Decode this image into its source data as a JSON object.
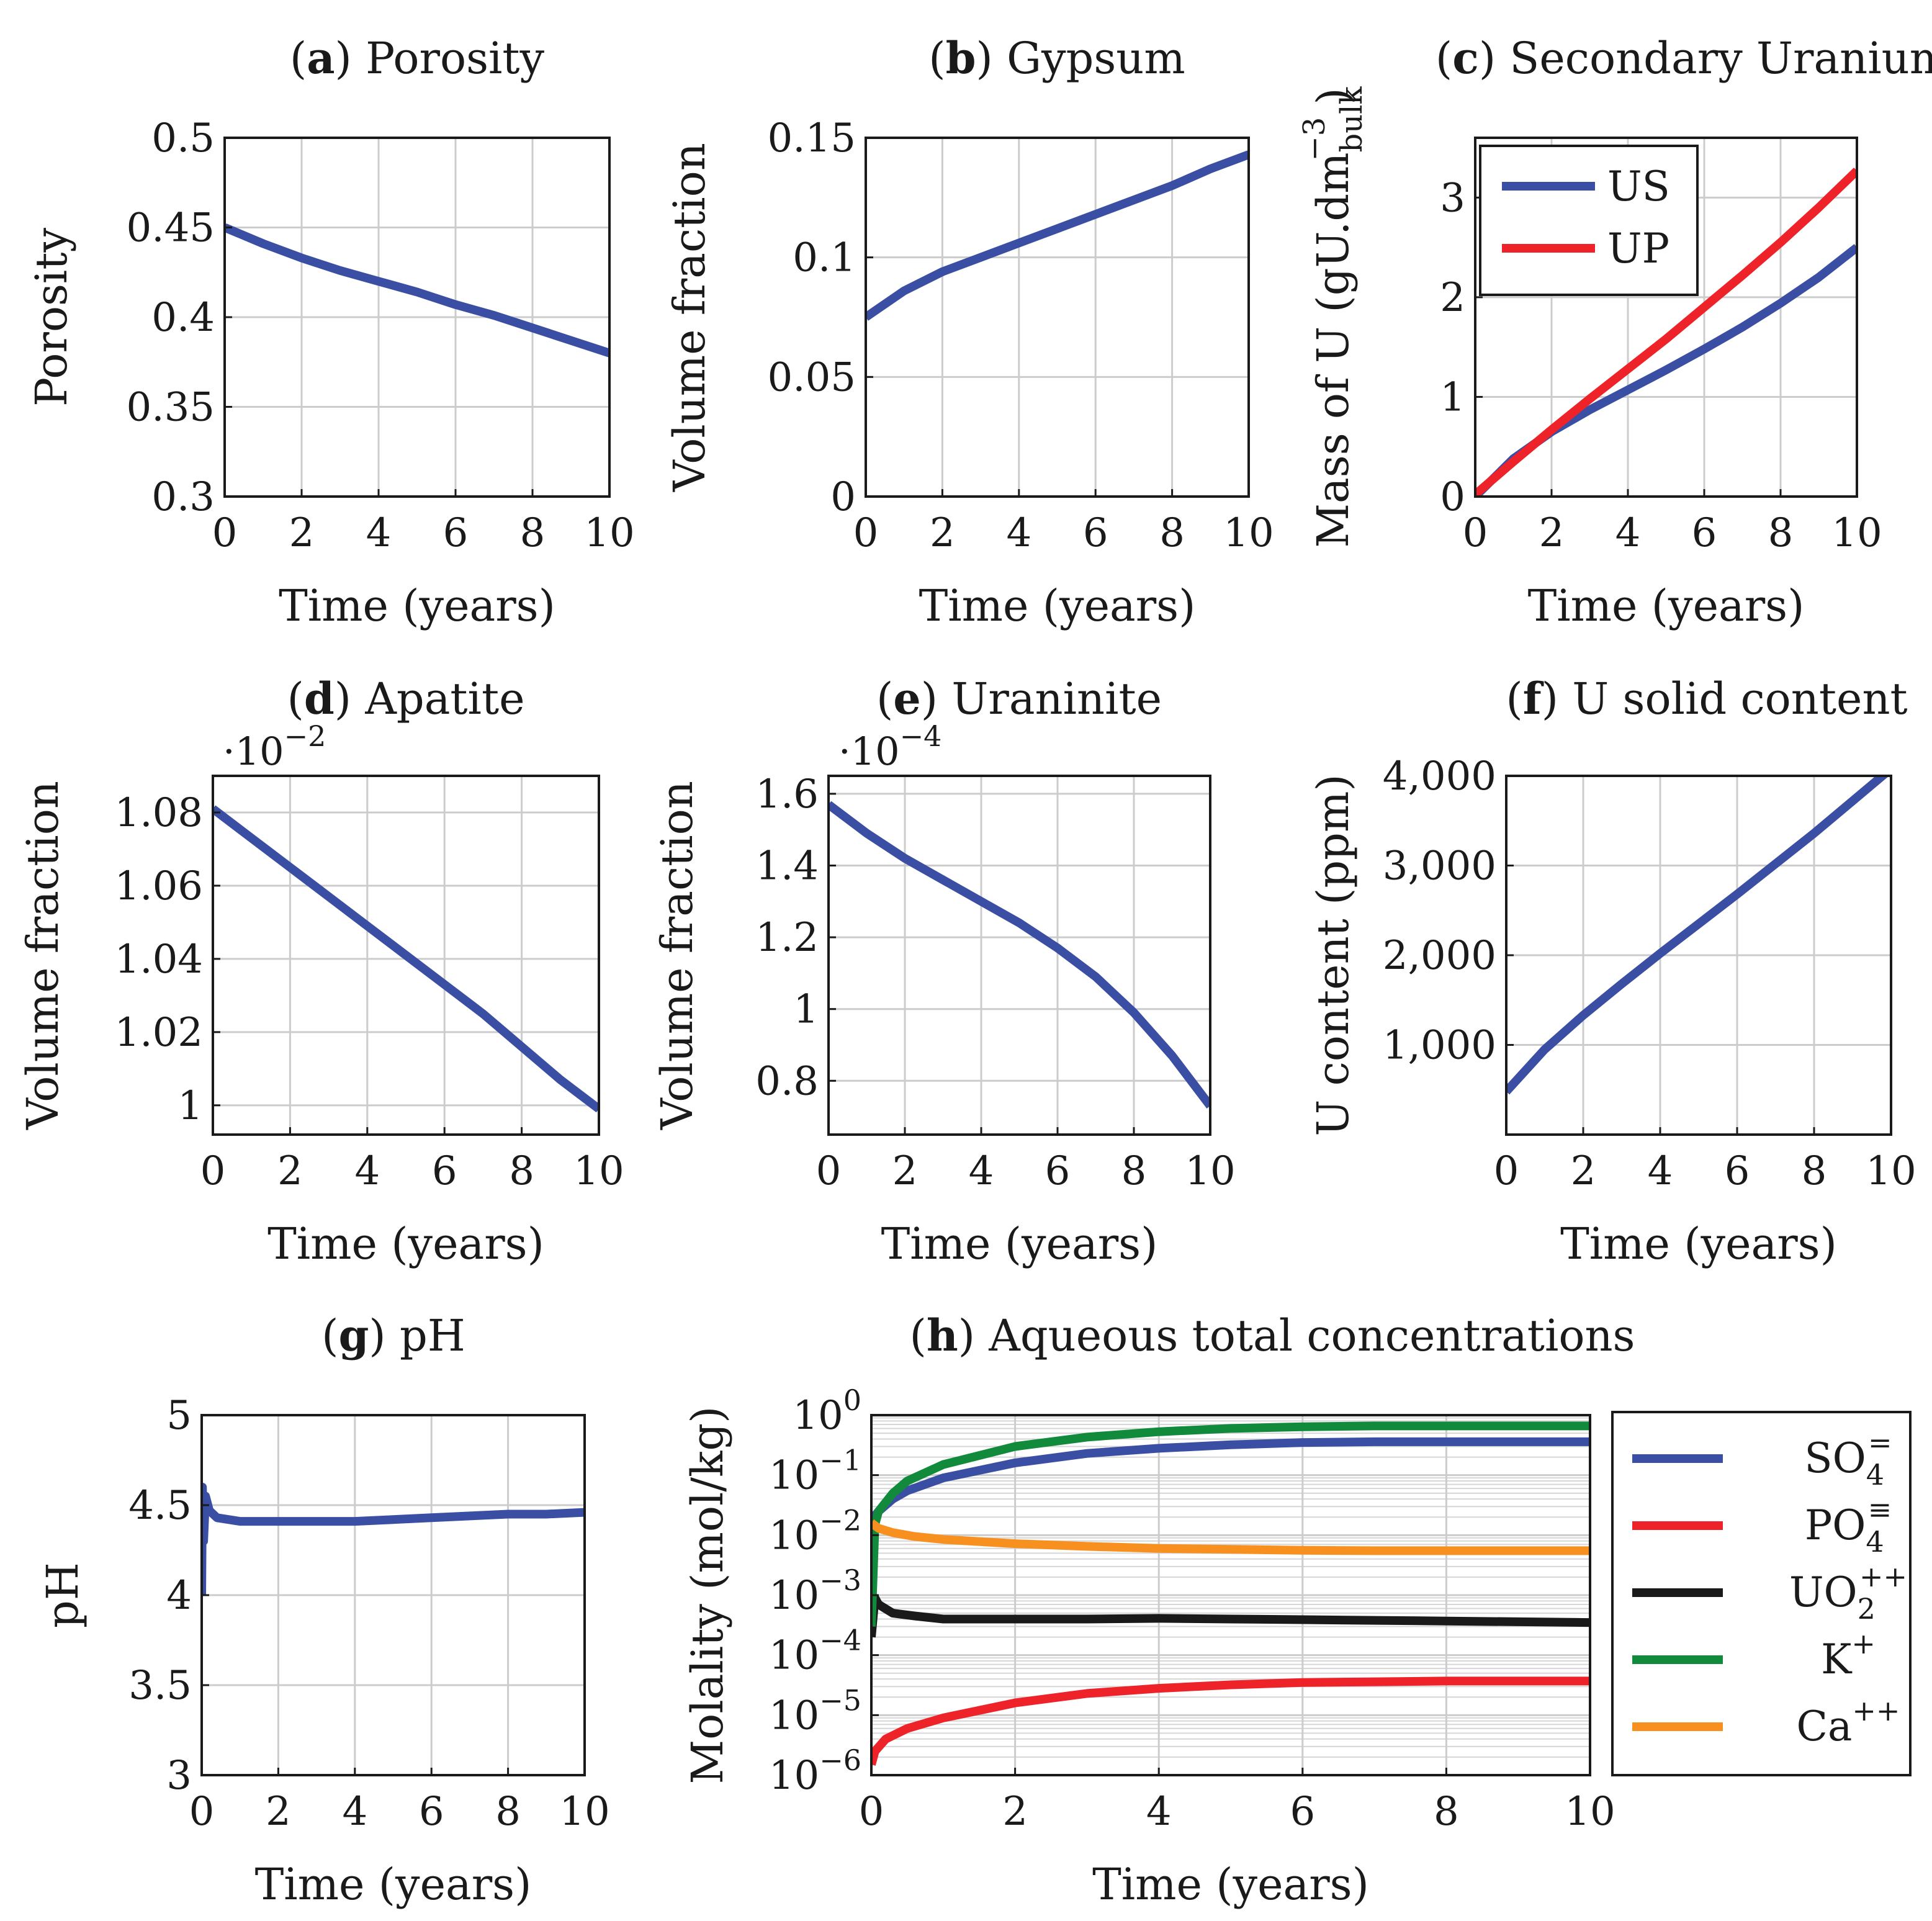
{
  "figure_title": "",
  "colors": {
    "blue": "#3a4fa3",
    "red": "#ee2229",
    "black": "#1a1a1a",
    "green": "#128a3c",
    "orange": "#f7901e"
  },
  "chart_data": [
    {
      "id": "a",
      "type": "line",
      "title_letter": "a",
      "title": "Porosity",
      "xlabel": "Time (years)",
      "ylabel": "Porosity",
      "xlim": [
        0,
        10
      ],
      "ylim": [
        0.3,
        0.5
      ],
      "xticks": [
        0,
        2,
        4,
        6,
        8,
        10
      ],
      "xtick_labels": [
        "0",
        "2",
        "4",
        "6",
        "8",
        "10"
      ],
      "yticks": [
        0.3,
        0.35,
        0.4,
        0.45,
        0.5
      ],
      "ytick_labels": [
        "0.3",
        "0.35",
        "0.4",
        "0.45",
        "0.5"
      ],
      "series": [
        {
          "name": "Porosity",
          "color": "blue",
          "x": [
            0,
            1,
            2,
            3,
            4,
            5,
            6,
            7,
            8,
            9,
            10
          ],
          "y": [
            0.45,
            0.441,
            0.433,
            0.426,
            0.42,
            0.414,
            0.407,
            0.401,
            0.394,
            0.387,
            0.38
          ]
        }
      ]
    },
    {
      "id": "b",
      "type": "line",
      "title_letter": "b",
      "title": "Gypsum",
      "xlabel": "Time (years)",
      "ylabel": "Volume fraction",
      "xlim": [
        0,
        10
      ],
      "ylim": [
        0,
        0.15
      ],
      "xticks": [
        0,
        2,
        4,
        6,
        8,
        10
      ],
      "xtick_labels": [
        "0",
        "2",
        "4",
        "6",
        "8",
        "10"
      ],
      "yticks": [
        0,
        0.05,
        0.1,
        0.15
      ],
      "ytick_labels": [
        "0",
        "0.05",
        "0.1",
        "0.15"
      ],
      "series": [
        {
          "name": "Gypsum",
          "color": "blue",
          "x": [
            0,
            1,
            2,
            3,
            4,
            5,
            6,
            7,
            8,
            9,
            10
          ],
          "y": [
            0.075,
            0.086,
            0.094,
            0.1,
            0.106,
            0.112,
            0.118,
            0.124,
            0.13,
            0.137,
            0.143
          ]
        }
      ]
    },
    {
      "id": "c",
      "type": "line",
      "title_letter": "c",
      "title": "Secondary Uranium",
      "xlabel": "Time (years)",
      "ylabel": "Mass of U (gU.dm",
      "ylabel_sub": "bulk",
      "ylabel_sup": "−3",
      "ylabel_end": ")",
      "xlim": [
        0,
        10
      ],
      "ylim": [
        0,
        3.6
      ],
      "xticks": [
        0,
        2,
        4,
        6,
        8,
        10
      ],
      "xtick_labels": [
        "0",
        "2",
        "4",
        "6",
        "8",
        "10"
      ],
      "yticks": [
        0,
        1,
        2,
        3
      ],
      "ytick_labels": [
        "0",
        "1",
        "2",
        "3"
      ],
      "legend_position": "top-left",
      "series": [
        {
          "name": "US",
          "color": "blue",
          "x": [
            0,
            1,
            2,
            3,
            4,
            5,
            6,
            7,
            8,
            9,
            10
          ],
          "y": [
            0,
            0.38,
            0.65,
            0.87,
            1.07,
            1.27,
            1.48,
            1.7,
            1.94,
            2.2,
            2.5
          ]
        },
        {
          "name": "UP",
          "color": "red",
          "x": [
            0,
            1,
            2,
            3,
            4,
            5,
            6,
            7,
            8,
            9,
            10
          ],
          "y": [
            0.02,
            0.35,
            0.67,
            0.98,
            1.28,
            1.58,
            1.9,
            2.22,
            2.55,
            2.9,
            3.27
          ]
        }
      ]
    },
    {
      "id": "d",
      "type": "line",
      "title_letter": "d",
      "title": "Apatite",
      "xlabel": "Time (years)",
      "ylabel": "Volume fraction",
      "scale_label": "·10",
      "scale_exp": "−2",
      "xlim": [
        0,
        10
      ],
      "ylim": [
        0.992,
        1.09
      ],
      "xticks": [
        0,
        2,
        4,
        6,
        8,
        10
      ],
      "xtick_labels": [
        "0",
        "2",
        "4",
        "6",
        "8",
        "10"
      ],
      "yticks": [
        1.0,
        1.02,
        1.04,
        1.06,
        1.08
      ],
      "ytick_labels": [
        "1",
        "1.02",
        "1.04",
        "1.06",
        "1.08"
      ],
      "series": [
        {
          "name": "Apatite",
          "color": "blue",
          "x": [
            0,
            1,
            2,
            3,
            4,
            5,
            6,
            7,
            8,
            9,
            10
          ],
          "y": [
            1.081,
            1.073,
            1.065,
            1.057,
            1.049,
            1.041,
            1.033,
            1.025,
            1.016,
            1.007,
            0.999
          ]
        }
      ]
    },
    {
      "id": "e",
      "type": "line",
      "title_letter": "e",
      "title": "Uraninite",
      "xlabel": "Time (years)",
      "ylabel": "Volume fraction",
      "scale_label": "·10",
      "scale_exp": "−4",
      "xlim": [
        0,
        10
      ],
      "ylim": [
        0.65,
        1.65
      ],
      "xticks": [
        0,
        2,
        4,
        6,
        8,
        10
      ],
      "xtick_labels": [
        "0",
        "2",
        "4",
        "6",
        "8",
        "10"
      ],
      "yticks": [
        0.8,
        1.0,
        1.2,
        1.4,
        1.6
      ],
      "ytick_labels": [
        "0.8",
        "1",
        "1.2",
        "1.4",
        "1.6"
      ],
      "series": [
        {
          "name": "Uraninite",
          "color": "blue",
          "x": [
            0,
            1,
            2,
            3,
            4,
            5,
            6,
            7,
            8,
            9,
            10
          ],
          "y": [
            1.57,
            1.49,
            1.42,
            1.36,
            1.3,
            1.24,
            1.17,
            1.09,
            0.99,
            0.87,
            0.73
          ]
        }
      ]
    },
    {
      "id": "f",
      "type": "line",
      "title_letter": "f",
      "title": "U solid content",
      "xlabel": "Time (years)",
      "ylabel": "U content (ppm)",
      "xlim": [
        0,
        10
      ],
      "ylim": [
        0,
        4000
      ],
      "xticks": [
        0,
        2,
        4,
        6,
        8,
        10
      ],
      "xtick_labels": [
        "0",
        "2",
        "4",
        "6",
        "8",
        "10"
      ],
      "yticks": [
        1000,
        2000,
        3000,
        4000
      ],
      "ytick_labels": [
        "1,000",
        "2,000",
        "3,000",
        "4,000"
      ],
      "series": [
        {
          "name": "U content",
          "color": "blue",
          "x": [
            0,
            1,
            2,
            3,
            4,
            5,
            6,
            7,
            8,
            9,
            10
          ],
          "y": [
            480,
            950,
            1330,
            1680,
            2020,
            2350,
            2680,
            3020,
            3360,
            3720,
            4080
          ]
        }
      ]
    },
    {
      "id": "g",
      "type": "line",
      "title_letter": "g",
      "title": "pH",
      "xlabel": "Time (years)",
      "ylabel": "pH",
      "xlim": [
        0,
        10
      ],
      "ylim": [
        3,
        5
      ],
      "xticks": [
        0,
        2,
        4,
        6,
        8,
        10
      ],
      "xtick_labels": [
        "0",
        "2",
        "4",
        "6",
        "8",
        "10"
      ],
      "yticks": [
        3,
        3.5,
        4,
        4.5,
        5
      ],
      "ytick_labels": [
        "3",
        "3.5",
        "4",
        "4.5",
        "5"
      ],
      "series": [
        {
          "name": "pH",
          "color": "blue",
          "x": [
            0,
            0.02,
            0.05,
            0.1,
            0.2,
            0.4,
            0.7,
            1,
            2,
            3,
            4,
            5,
            6,
            7,
            8,
            9,
            10
          ],
          "y": [
            4.0,
            4.6,
            4.3,
            4.55,
            4.47,
            4.43,
            4.42,
            4.41,
            4.41,
            4.41,
            4.41,
            4.42,
            4.43,
            4.44,
            4.45,
            4.45,
            4.46
          ]
        }
      ]
    },
    {
      "id": "h",
      "type": "line",
      "yscale": "log",
      "title_letter": "h",
      "title": "Aqueous total concentrations",
      "xlabel": "Time (years)",
      "ylabel": "Molality (mol/kg)",
      "xlim": [
        0,
        10
      ],
      "ylim": [
        1e-06,
        1
      ],
      "xticks": [
        0,
        2,
        4,
        6,
        8,
        10
      ],
      "xtick_labels": [
        "0",
        "2",
        "4",
        "6",
        "8",
        "10"
      ],
      "yticks_exp": [
        -6,
        -5,
        -4,
        -3,
        -2,
        -1,
        0
      ],
      "ytick_base": "10",
      "ytick_exps": [
        "−6",
        "−5",
        "−4",
        "−3",
        "−2",
        "−1",
        "0"
      ],
      "legend_position": "right outside",
      "series": [
        {
          "name": "SO",
          "sub": "4",
          "sup": "=",
          "color": "blue",
          "x": [
            0,
            0.1,
            0.3,
            0.5,
            1,
            2,
            3,
            4,
            5,
            6,
            7,
            8,
            9,
            10
          ],
          "y": [
            0.018,
            0.025,
            0.04,
            0.055,
            0.09,
            0.16,
            0.23,
            0.28,
            0.32,
            0.35,
            0.36,
            0.36,
            0.36,
            0.36
          ]
        },
        {
          "name": "PO",
          "sub": "4",
          "sup": "≡",
          "color": "red",
          "x": [
            0,
            0.05,
            0.2,
            0.5,
            1,
            2,
            3,
            4,
            5,
            6,
            7,
            8,
            9,
            10
          ],
          "y": [
            1.5e-06,
            2.5e-06,
            4e-06,
            6e-06,
            9e-06,
            1.6e-05,
            2.3e-05,
            2.8e-05,
            3.2e-05,
            3.5e-05,
            3.6e-05,
            3.7e-05,
            3.7e-05,
            3.7e-05
          ]
        },
        {
          "name": "UO",
          "sub": "2",
          "sup": "++",
          "color": "black",
          "x": [
            0,
            0.05,
            0.1,
            0.3,
            0.6,
            1,
            2,
            3,
            4,
            5,
            6,
            7,
            8,
            9,
            10
          ],
          "y": [
            0.0002,
            0.0009,
            0.0007,
            0.0005,
            0.00045,
            0.0004,
            0.0004,
            0.0004,
            0.00041,
            0.0004,
            0.00039,
            0.00038,
            0.00037,
            0.00036,
            0.00035
          ]
        },
        {
          "name": "K",
          "sub": "",
          "sup": "+",
          "color": "green",
          "x": [
            0,
            0.05,
            0.1,
            0.3,
            0.5,
            1,
            2,
            3,
            4,
            5,
            6,
            7,
            8,
            9,
            10
          ],
          "y": [
            0.0003,
            0.015,
            0.025,
            0.05,
            0.08,
            0.15,
            0.3,
            0.43,
            0.53,
            0.6,
            0.64,
            0.66,
            0.66,
            0.66,
            0.66
          ]
        },
        {
          "name": "Ca",
          "sub": "",
          "sup": "++",
          "color": "orange",
          "x": [
            0,
            0.1,
            0.3,
            0.6,
            1,
            2,
            3,
            4,
            5,
            6,
            7,
            8,
            9,
            10
          ],
          "y": [
            0.016,
            0.013,
            0.011,
            0.0095,
            0.0085,
            0.0072,
            0.0065,
            0.006,
            0.0058,
            0.0056,
            0.0055,
            0.0055,
            0.0055,
            0.0055
          ]
        }
      ]
    }
  ]
}
